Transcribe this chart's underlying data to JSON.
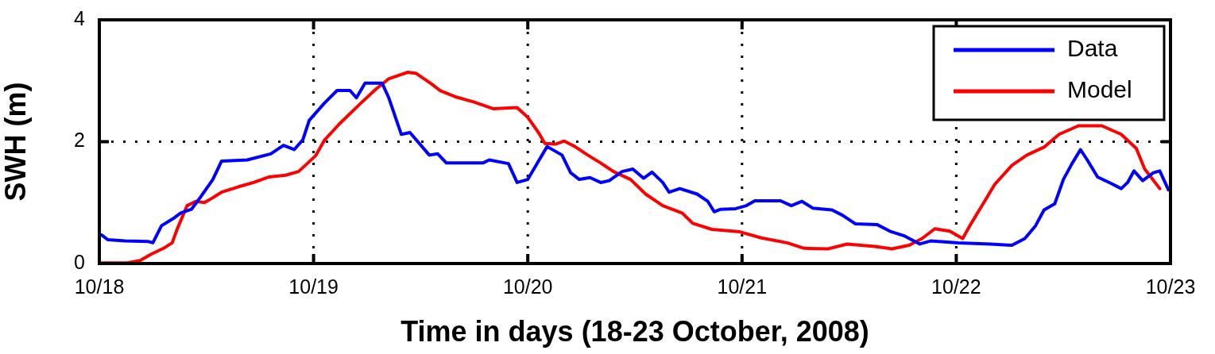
{
  "chart_data": {
    "type": "line",
    "xlabel": "Time in days (18-23 October, 2008)",
    "ylabel": "SWH (m)",
    "xlim": [
      "2008-10-18",
      "2008-10-23"
    ],
    "xticks": [
      {
        "value": "2008-10-18",
        "label": "10/18"
      },
      {
        "value": "2008-10-19",
        "label": "10/19"
      },
      {
        "value": "2008-10-20",
        "label": "10/20"
      },
      {
        "value": "2008-10-21",
        "label": "10/21"
      },
      {
        "value": "2008-10-22",
        "label": "10/22"
      },
      {
        "value": "2008-10-23",
        "label": "10/23"
      }
    ],
    "ylim": [
      0,
      4
    ],
    "yticks": [
      0,
      2,
      4
    ],
    "grid": true,
    "legend": "top right",
    "marker": "none",
    "line_style": "solid",
    "series": [
      {
        "name": "Data",
        "color": "#0000ff",
        "x": [
          "2008-10-18T00:14",
          "2008-10-18T00:58",
          "2008-10-18T02:53",
          "2008-10-18T05:31",
          "2008-10-18T06:00",
          "2008-10-18T06:58",
          "2008-10-18T08:24",
          "2008-10-18T09:07",
          "2008-10-18T10:19",
          "2008-10-18T11:17",
          "2008-10-18T12:43",
          "2008-10-18T13:41",
          "2008-10-18T16:34",
          "2008-10-18T19:12",
          "2008-10-18T20:38",
          "2008-10-18T21:50",
          "2008-10-18T22:48",
          "2008-10-18T23:31",
          "2008-10-19T01:12",
          "2008-10-19T02:38",
          "2008-10-19T04:05",
          "2008-10-19T04:48",
          "2008-10-19T05:46",
          "2008-10-19T07:41",
          "2008-10-19T08:24",
          "2008-10-19T09:50",
          "2008-10-19T10:48",
          "2008-10-19T12:58",
          "2008-10-19T13:55",
          "2008-10-19T14:53",
          "2008-10-19T18:58",
          "2008-10-19T19:41",
          "2008-10-19T21:50",
          "2008-10-19T22:48",
          "2008-10-20T00:00",
          "2008-10-20T01:12",
          "2008-10-20T02:10",
          "2008-10-20T03:50",
          "2008-10-20T04:48",
          "2008-10-20T05:46",
          "2008-10-20T06:58",
          "2008-10-20T08:10",
          "2008-10-20T09:07",
          "2008-10-20T10:34",
          "2008-10-20T11:46",
          "2008-10-20T12:58",
          "2008-10-20T13:55",
          "2008-10-20T15:07",
          "2008-10-20T15:50",
          "2008-10-20T17:02",
          "2008-10-20T18:58",
          "2008-10-20T20:10",
          "2008-10-20T20:53",
          "2008-10-20T21:36",
          "2008-10-20T23:17",
          "2008-10-21T00:29",
          "2008-10-21T01:26",
          "2008-10-21T04:19",
          "2008-10-21T05:31",
          "2008-10-21T06:43",
          "2008-10-21T07:55",
          "2008-10-21T10:05",
          "2008-10-21T11:17",
          "2008-10-21T12:43",
          "2008-10-21T15:07",
          "2008-10-21T16:34",
          "2008-10-21T18:14",
          "2008-10-21T19:55",
          "2008-10-21T21:07",
          "2008-10-22T00:14",
          "2008-10-22T03:50",
          "2008-10-22T06:14",
          "2008-10-22T07:41",
          "2008-10-22T08:53",
          "2008-10-22T09:50",
          "2008-10-22T11:02",
          "2008-10-22T12:00",
          "2008-10-22T12:58",
          "2008-10-22T13:55",
          "2008-10-22T14:38",
          "2008-10-22T15:50",
          "2008-10-22T17:17",
          "2008-10-22T18:29",
          "2008-10-22T19:12",
          "2008-10-22T19:55",
          "2008-10-22T20:53",
          "2008-10-22T22:05",
          "2008-10-22T22:48",
          "2008-10-22T23:46"
        ],
        "values": [
          0.47,
          0.39,
          0.37,
          0.36,
          0.34,
          0.62,
          0.75,
          0.83,
          0.89,
          1.08,
          1.38,
          1.68,
          1.7,
          1.8,
          1.94,
          1.87,
          2.03,
          2.35,
          2.63,
          2.84,
          2.84,
          2.72,
          2.96,
          2.96,
          2.73,
          2.12,
          2.15,
          1.78,
          1.8,
          1.65,
          1.65,
          1.7,
          1.64,
          1.33,
          1.38,
          1.68,
          1.92,
          1.78,
          1.49,
          1.38,
          1.41,
          1.33,
          1.36,
          1.51,
          1.55,
          1.4,
          1.5,
          1.33,
          1.17,
          1.23,
          1.14,
          1.02,
          0.85,
          0.89,
          0.9,
          0.95,
          1.03,
          1.03,
          0.95,
          1.02,
          0.91,
          0.88,
          0.79,
          0.65,
          0.64,
          0.53,
          0.45,
          0.32,
          0.37,
          0.34,
          0.32,
          0.3,
          0.41,
          0.62,
          0.88,
          0.98,
          1.38,
          1.64,
          1.87,
          1.71,
          1.42,
          1.32,
          1.23,
          1.33,
          1.52,
          1.36,
          1.49,
          1.52,
          1.21
        ]
      },
      {
        "name": "Model",
        "color": "#ff0000",
        "x": [
          "2008-10-18T00:14",
          "2008-10-18T03:07",
          "2008-10-18T04:34",
          "2008-10-18T05:46",
          "2008-10-18T07:12",
          "2008-10-18T08:10",
          "2008-10-18T08:38",
          "2008-10-18T09:22",
          "2008-10-18T09:50",
          "2008-10-18T10:48",
          "2008-10-18T11:46",
          "2008-10-18T12:43",
          "2008-10-18T13:41",
          "2008-10-18T15:36",
          "2008-10-18T17:17",
          "2008-10-18T18:58",
          "2008-10-18T20:53",
          "2008-10-18T22:19",
          "2008-10-18T23:17",
          "2008-10-19T00:14",
          "2008-10-19T01:12",
          "2008-10-19T02:53",
          "2008-10-19T05:17",
          "2008-10-19T06:58",
          "2008-10-19T08:24",
          "2008-10-19T10:34",
          "2008-10-19T11:31",
          "2008-10-19T13:12",
          "2008-10-19T14:10",
          "2008-10-19T15:50",
          "2008-10-19T17:17",
          "2008-10-19T18:00",
          "2008-10-19T20:10",
          "2008-10-19T22:48",
          "2008-10-20T00:00",
          "2008-10-20T01:12",
          "2008-10-20T01:55",
          "2008-10-20T03:07",
          "2008-10-20T04:05",
          "2008-10-20T05:17",
          "2008-10-20T06:43",
          "2008-10-20T08:10",
          "2008-10-20T09:36",
          "2008-10-20T11:31",
          "2008-10-20T13:12",
          "2008-10-20T15:07",
          "2008-10-20T17:17",
          "2008-10-20T18:29",
          "2008-10-20T20:38",
          "2008-10-20T23:46",
          "2008-10-21T02:10",
          "2008-10-21T05:02",
          "2008-10-21T06:58",
          "2008-10-21T09:36",
          "2008-10-21T11:46",
          "2008-10-21T14:53",
          "2008-10-21T16:48",
          "2008-10-21T18:43",
          "2008-10-21T20:10",
          "2008-10-21T21:36",
          "2008-10-21T23:17",
          "2008-10-22T00:43",
          "2008-10-22T01:41",
          "2008-10-22T02:53",
          "2008-10-22T04:19",
          "2008-10-22T06:14",
          "2008-10-22T07:55",
          "2008-10-22T09:50",
          "2008-10-22T11:31",
          "2008-10-22T13:41",
          "2008-10-22T16:19",
          "2008-10-22T18:29",
          "2008-10-22T20:10",
          "2008-10-22T21:07",
          "2008-10-22T22:48"
        ],
        "values": [
          0.01,
          0.01,
          0.05,
          0.15,
          0.25,
          0.34,
          0.53,
          0.79,
          0.95,
          1.02,
          1.0,
          1.08,
          1.17,
          1.26,
          1.33,
          1.42,
          1.45,
          1.51,
          1.64,
          1.77,
          2.02,
          2.29,
          2.63,
          2.86,
          3.03,
          3.14,
          3.12,
          2.95,
          2.84,
          2.74,
          2.68,
          2.65,
          2.54,
          2.56,
          2.4,
          2.15,
          1.97,
          1.96,
          2.01,
          1.92,
          1.78,
          1.65,
          1.51,
          1.38,
          1.14,
          0.95,
          0.83,
          0.66,
          0.56,
          0.52,
          0.42,
          0.34,
          0.25,
          0.24,
          0.32,
          0.28,
          0.24,
          0.3,
          0.41,
          0.57,
          0.53,
          0.41,
          0.66,
          0.95,
          1.3,
          1.61,
          1.78,
          1.91,
          2.12,
          2.26,
          2.26,
          2.12,
          1.89,
          1.55,
          1.23
        ]
      }
    ]
  }
}
